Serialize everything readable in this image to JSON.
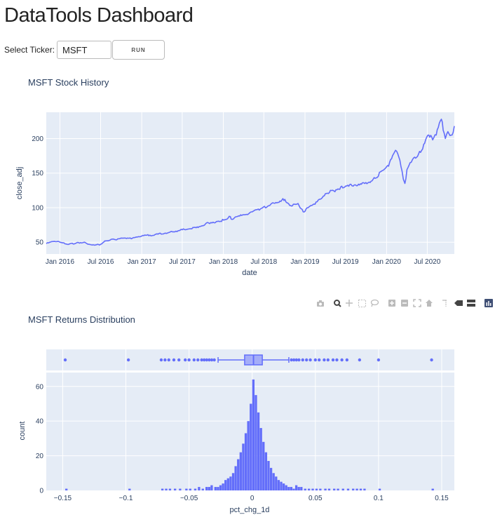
{
  "app": {
    "title": "DataTools Dashboard",
    "ticker_label": "Select Ticker:",
    "ticker_value": "MSFT",
    "run_label": "RUN"
  },
  "colors": {
    "plot_bg": "#e5ecf6",
    "grid": "#ffffff",
    "line": "#636efa",
    "bar": "#636efa",
    "text": "#2a3f5f",
    "modebar": "#bbbbbb"
  },
  "modebar": {
    "icons": [
      "camera-icon",
      "zoom-icon",
      "pan-icon",
      "box-select-icon",
      "lasso-icon",
      "zoom-in-icon",
      "zoom-out-icon",
      "autoscale-icon",
      "reset-axes-icon",
      "spike-lines-icon",
      "hover-closest-icon",
      "hover-compare-icon",
      "plotly-logo-icon"
    ]
  },
  "chart_data": [
    {
      "type": "line",
      "title": "MSFT Stock History",
      "xlabel": "date",
      "ylabel": "close_adj",
      "x_ticks": [
        "Jan 2016",
        "Jul 2016",
        "Jan 2017",
        "Jul 2017",
        "Jan 2018",
        "Jul 2018",
        "Jan 2019",
        "Jul 2019",
        "Jan 2020",
        "Jul 2020"
      ],
      "y_ticks": [
        50,
        100,
        150,
        200
      ],
      "xlim": [
        "2015-11-01",
        "2020-10-30"
      ],
      "ylim": [
        33,
        238
      ],
      "grid": true,
      "series": [
        {
          "x": [
            "2015-11-01",
            "2015-12-01",
            "2016-01-01",
            "2016-02-10",
            "2016-03-15",
            "2016-04-20",
            "2016-05-10",
            "2016-06-27",
            "2016-07-20",
            "2016-09-01",
            "2016-10-20",
            "2016-11-15",
            "2017-01-01",
            "2017-03-01",
            "2017-05-01",
            "2017-07-01",
            "2017-09-01",
            "2017-10-27",
            "2017-12-01",
            "2018-01-02",
            "2018-02-01",
            "2018-02-09",
            "2018-03-15",
            "2018-04-20",
            "2018-05-15",
            "2018-06-15",
            "2018-08-01",
            "2018-09-20",
            "2018-10-03",
            "2018-10-29",
            "2018-11-10",
            "2018-12-01",
            "2018-12-24",
            "2019-01-15",
            "2019-02-15",
            "2019-03-15",
            "2019-04-25",
            "2019-05-15",
            "2019-06-10",
            "2019-07-25",
            "2019-08-15",
            "2019-09-15",
            "2019-10-15",
            "2019-11-15",
            "2019-12-15",
            "2020-01-10",
            "2020-02-10",
            "2020-02-20",
            "2020-03-05",
            "2020-03-16",
            "2020-03-23",
            "2020-04-01",
            "2020-04-15",
            "2020-05-01",
            "2020-06-01",
            "2020-07-08",
            "2020-07-25",
            "2020-08-10",
            "2020-09-02",
            "2020-09-10",
            "2020-09-20",
            "2020-10-01",
            "2020-10-20",
            "2020-10-30"
          ],
          "y": [
            48,
            51,
            50,
            47,
            49,
            50,
            47,
            46,
            52,
            54,
            56,
            55,
            59,
            61,
            64,
            68,
            71,
            78,
            80,
            82,
            87,
            83,
            88,
            90,
            95,
            98,
            105,
            111,
            112,
            103,
            105,
            106,
            94,
            100,
            105,
            113,
            125,
            123,
            130,
            134,
            133,
            136,
            137,
            143,
            154,
            160,
            183,
            178,
            160,
            141,
            135,
            155,
            165,
            172,
            180,
            205,
            198,
            205,
            228,
            212,
            200,
            210,
            205,
            218
          ]
        }
      ]
    },
    {
      "type": "bar",
      "title": "MSFT Returns Distribution",
      "xlabel": "pct_chg_1d",
      "ylabel": "count",
      "x_ticks": [
        -0.15,
        -0.1,
        -0.05,
        0,
        0.05,
        0.1,
        0.15
      ],
      "y_ticks": [
        0,
        20,
        40,
        60
      ],
      "xlim": [
        -0.163,
        0.16
      ],
      "ylim": [
        0,
        68
      ],
      "grid": true,
      "bin_width": 0.002,
      "bins": [
        -0.03,
        -0.028,
        -0.026,
        -0.024,
        -0.022,
        -0.02,
        -0.018,
        -0.016,
        -0.014,
        -0.012,
        -0.01,
        -0.008,
        -0.006,
        -0.004,
        -0.002,
        0,
        0.002,
        0.004,
        0.006,
        0.008,
        0.01,
        0.012,
        0.014,
        0.016,
        0.018,
        0.02,
        0.022,
        0.024,
        0.026,
        0.028,
        0.03,
        0.032
      ],
      "counts": [
        2,
        2,
        3,
        4,
        6,
        7,
        8,
        10,
        14,
        18,
        22,
        27,
        33,
        40,
        50,
        64,
        55,
        45,
        36,
        28,
        22,
        17,
        13,
        10,
        8,
        6,
        5,
        4,
        3,
        2,
        2,
        1
      ],
      "tail_bins": [
        -0.148,
        -0.098,
        -0.072,
        -0.069,
        -0.066,
        -0.062,
        -0.058,
        -0.053,
        -0.05,
        -0.046,
        -0.043,
        -0.04,
        -0.037,
        -0.035,
        -0.033,
        0.034,
        0.036,
        0.038,
        0.041,
        0.044,
        0.047,
        0.05,
        0.053,
        0.057,
        0.06,
        0.064,
        0.067,
        0.071,
        0.075,
        0.079,
        0.082,
        0.085,
        0.088,
        0.1,
        0.142
      ],
      "tail_counts": [
        1,
        1,
        1,
        1,
        1,
        1,
        1,
        1,
        1,
        1,
        2,
        1,
        2,
        2,
        3,
        3,
        2,
        2,
        1,
        1,
        1,
        1,
        1,
        1,
        1,
        1,
        1,
        1,
        1,
        1,
        1,
        1,
        1,
        1,
        1
      ],
      "box": {
        "q1": -0.006,
        "median": 0.001,
        "q3": 0.008,
        "whisker_low": -0.027,
        "whisker_high": 0.029,
        "outliers": [
          -0.148,
          -0.098,
          -0.072,
          -0.069,
          -0.066,
          -0.062,
          -0.058,
          -0.053,
          -0.05,
          -0.046,
          -0.043,
          -0.04,
          -0.038,
          -0.036,
          -0.034,
          -0.032,
          -0.03,
          0.031,
          0.033,
          0.035,
          0.037,
          0.04,
          0.043,
          0.046,
          0.05,
          0.053,
          0.057,
          0.06,
          0.064,
          0.067,
          0.071,
          0.075,
          0.085,
          0.1,
          0.142
        ]
      }
    }
  ]
}
